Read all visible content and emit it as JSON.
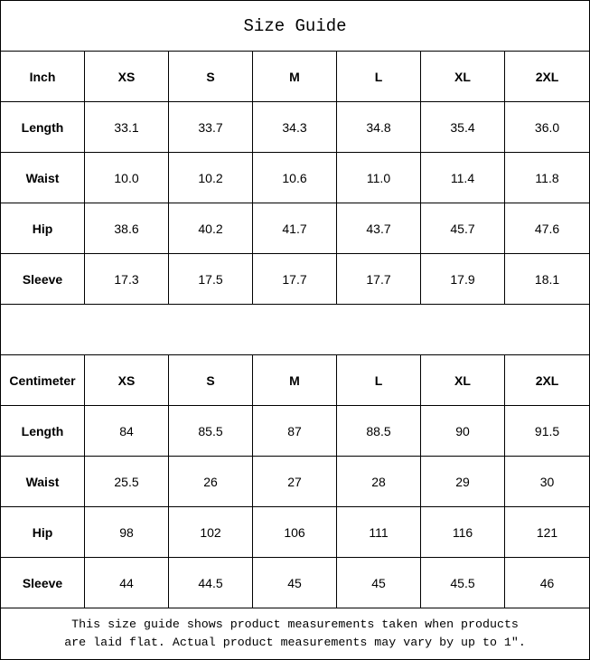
{
  "title": "Size Guide",
  "sizes": [
    "XS",
    "S",
    "M",
    "L",
    "XL",
    "2XL"
  ],
  "inch": {
    "unit_label": "Inch",
    "rows": [
      {
        "label": "Length",
        "values": [
          "33.1",
          "33.7",
          "34.3",
          "34.8",
          "35.4",
          "36.0"
        ]
      },
      {
        "label": "Waist",
        "values": [
          "10.0",
          "10.2",
          "10.6",
          "11.0",
          "11.4",
          "11.8"
        ]
      },
      {
        "label": "Hip",
        "values": [
          "38.6",
          "40.2",
          "41.7",
          "43.7",
          "45.7",
          "47.6"
        ]
      },
      {
        "label": "Sleeve",
        "values": [
          "17.3",
          "17.5",
          "17.7",
          "17.7",
          "17.9",
          "18.1"
        ]
      }
    ]
  },
  "cm": {
    "unit_label": "Centimeter",
    "rows": [
      {
        "label": "Length",
        "values": [
          "84",
          "85.5",
          "87",
          "88.5",
          "90",
          "91.5"
        ]
      },
      {
        "label": "Waist",
        "values": [
          "25.5",
          "26",
          "27",
          "28",
          "29",
          "30"
        ]
      },
      {
        "label": "Hip",
        "values": [
          "98",
          "102",
          "106",
          "111",
          "116",
          "121"
        ]
      },
      {
        "label": "Sleeve",
        "values": [
          "44",
          "44.5",
          "45",
          "45",
          "45.5",
          "46"
        ]
      }
    ]
  },
  "note": {
    "line1": "This size guide shows product measurements taken when products",
    "line2": "are laid flat. Actual product measurements may vary by up to 1″."
  }
}
